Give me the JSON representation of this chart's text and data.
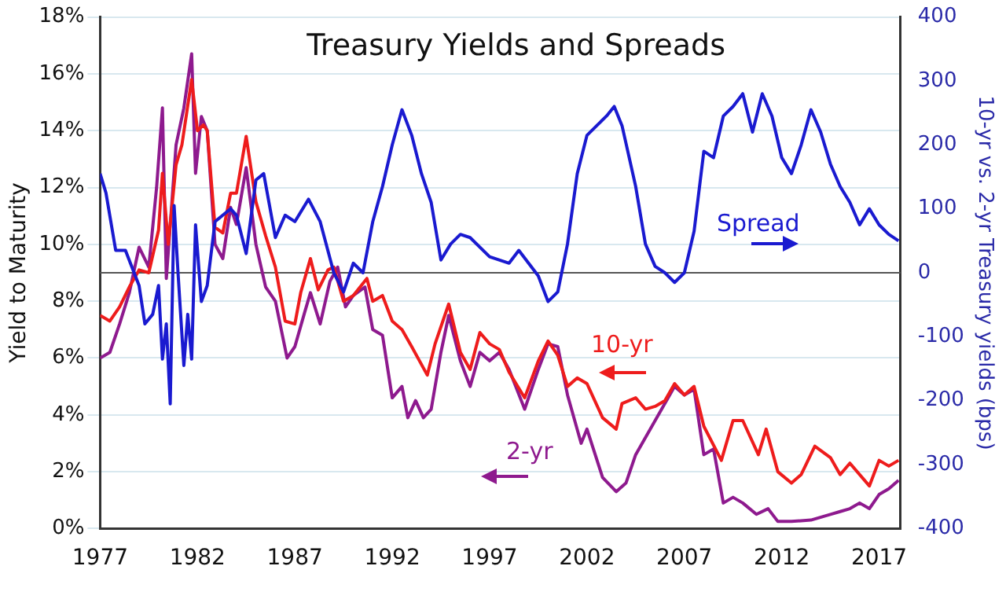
{
  "chart_data": {
    "type": "line",
    "title": "Treasury Yields and Spreads",
    "ylabel": "Yield to Maturity",
    "y2label": "10-yr vs. 2-yr Treasury yields (bps)",
    "xlim": [
      1977,
      2018.1
    ],
    "xticks": [
      1977,
      1982,
      1987,
      1992,
      1997,
      2002,
      2007,
      2012,
      2017
    ],
    "ylim": [
      0,
      18
    ],
    "yticks": [
      {
        "value": 0,
        "label": "0%"
      },
      {
        "value": 2,
        "label": "2%"
      },
      {
        "value": 4,
        "label": "4%"
      },
      {
        "value": 6,
        "label": "6%"
      },
      {
        "value": 8,
        "label": "8%"
      },
      {
        "value": 10,
        "label": "10%"
      },
      {
        "value": 12,
        "label": "12%"
      },
      {
        "value": 14,
        "label": "14%"
      },
      {
        "value": 16,
        "label": "16%"
      },
      {
        "value": 18,
        "label": "18%"
      }
    ],
    "y2lim": [
      -400,
      400
    ],
    "y2ticks": [
      -400,
      -300,
      -200,
      -100,
      0,
      100,
      200,
      300,
      400
    ],
    "grid": "y",
    "legend": false,
    "marker": "none",
    "ref_lines": [
      {
        "axis": "y2",
        "value": 0,
        "color": "#555555"
      }
    ],
    "series": [
      {
        "name": "Spread",
        "color": "#1a1ad0",
        "axis": "y2",
        "x": [
          1977,
          1977.3,
          1977.8,
          1978.3,
          1979,
          1979.3,
          1979.7,
          1980,
          1980.2,
          1980.4,
          1980.6,
          1980.8,
          1981,
          1981.3,
          1981.5,
          1981.7,
          1981.9,
          1982.2,
          1982.5,
          1982.9,
          1983.3,
          1983.7,
          1984,
          1984.5,
          1985,
          1985.4,
          1986,
          1986.5,
          1987,
          1987.7,
          1988.3,
          1989,
          1989.5,
          1990,
          1990.5,
          1991,
          1991.5,
          1992,
          1992.5,
          1993,
          1993.5,
          1994,
          1994.5,
          1995,
          1995.5,
          1996,
          1997,
          1998,
          1998.5,
          1999,
          1999.5,
          2000,
          2000.5,
          2001,
          2001.5,
          2002,
          2002.5,
          2003,
          2003.4,
          2003.8,
          2004.5,
          2005,
          2005.5,
          2006,
          2006.5,
          2007,
          2007.5,
          2008,
          2008.5,
          2009,
          2009.5,
          2010,
          2010.5,
          2011,
          2011.5,
          2012,
          2012.5,
          2013,
          2013.5,
          2014,
          2014.5,
          2015,
          2015.5,
          2016,
          2016.5,
          2017,
          2017.5,
          2018
        ],
        "values": [
          155,
          125,
          35,
          35,
          -20,
          -80,
          -65,
          -20,
          -135,
          -80,
          -205,
          105,
          0,
          -145,
          -65,
          -135,
          75,
          -45,
          -20,
          80,
          90,
          100,
          90,
          30,
          145,
          155,
          55,
          90,
          80,
          115,
          80,
          0,
          -30,
          15,
          0,
          80,
          135,
          200,
          255,
          215,
          155,
          110,
          20,
          45,
          60,
          55,
          25,
          15,
          35,
          15,
          -5,
          -45,
          -30,
          45,
          155,
          215,
          230,
          245,
          260,
          230,
          135,
          45,
          10,
          0,
          -15,
          0,
          65,
          190,
          180,
          245,
          260,
          280,
          220,
          280,
          245,
          180,
          155,
          200,
          255,
          220,
          170,
          135,
          110,
          75,
          100,
          75,
          60,
          50
        ]
      },
      {
        "name": "10-yr",
        "color": "#ee1c1c",
        "x": [
          1977,
          1977.5,
          1978,
          1978.5,
          1979,
          1979.5,
          1980,
          1980.2,
          1980.5,
          1980.9,
          1981.2,
          1981.7,
          1982,
          1982.3,
          1982.5,
          1982.9,
          1983.3,
          1983.7,
          1984,
          1984.5,
          1985,
          1985.5,
          1986,
          1986.5,
          1987,
          1987.3,
          1987.8,
          1988.2,
          1988.7,
          1989,
          1989.5,
          1990,
          1990.7,
          1991,
          1991.5,
          1992,
          1992.5,
          1993,
          1993.8,
          1994.2,
          1994.9,
          1995.5,
          1996,
          1996.5,
          1997,
          1997.5,
          1998,
          1998.8,
          1999.5,
          2000,
          2000.5,
          2001,
          2001.5,
          2002,
          2002.8,
          2003.5,
          2003.8,
          2004.5,
          2005,
          2005.5,
          2006,
          2006.5,
          2007,
          2007.5,
          2008,
          2008.9,
          2009.5,
          2010,
          2010.8,
          2011.2,
          2011.8,
          2012.5,
          2013,
          2013.7,
          2014.5,
          2015,
          2015.5,
          2016.5,
          2017,
          2017.5,
          2018
        ],
        "values": [
          7.5,
          7.3,
          7.8,
          8.5,
          9.1,
          9.0,
          10.5,
          12.5,
          10.0,
          12.8,
          13.5,
          15.8,
          14.0,
          14.2,
          14.0,
          10.6,
          10.4,
          11.8,
          11.8,
          13.8,
          11.5,
          10.3,
          9.2,
          7.3,
          7.2,
          8.3,
          9.5,
          8.4,
          9.1,
          9.2,
          8.0,
          8.2,
          8.8,
          8.0,
          8.2,
          7.3,
          7.0,
          6.4,
          5.4,
          6.5,
          7.9,
          6.2,
          5.6,
          6.9,
          6.5,
          6.3,
          5.5,
          4.6,
          5.9,
          6.6,
          6.1,
          5.0,
          5.3,
          5.1,
          3.9,
          3.5,
          4.4,
          4.6,
          4.2,
          4.3,
          4.5,
          5.1,
          4.7,
          5.0,
          3.6,
          2.4,
          3.8,
          3.8,
          2.6,
          3.5,
          2.0,
          1.6,
          1.9,
          2.9,
          2.5,
          1.9,
          2.3,
          1.5,
          2.4,
          2.2,
          2.4
        ]
      },
      {
        "name": "2-yr",
        "color": "#8e1a8e",
        "x": [
          1977,
          1977.5,
          1978,
          1978.5,
          1979,
          1979.5,
          1979.9,
          1980.2,
          1980.4,
          1980.9,
          1981.3,
          1981.7,
          1981.9,
          1982.2,
          1982.5,
          1982.9,
          1983.3,
          1983.7,
          1984,
          1984.5,
          1985,
          1985.5,
          1986,
          1986.6,
          1987,
          1987.5,
          1987.8,
          1988.3,
          1988.8,
          1989.2,
          1989.6,
          1990,
          1990.6,
          1991,
          1991.5,
          1992,
          1992.5,
          1992.8,
          1993.2,
          1993.6,
          1994,
          1994.5,
          1994.9,
          1995.5,
          1996,
          1996.5,
          1997,
          1997.5,
          1998,
          1998.8,
          1999.5,
          2000,
          2000.5,
          2001,
          2001.7,
          2002,
          2002.8,
          2003.5,
          2004,
          2004.5,
          2005,
          2005.5,
          2006,
          2006.5,
          2007,
          2007.5,
          2008,
          2008.5,
          2009,
          2009.5,
          2010,
          2010.7,
          2011.3,
          2011.8,
          2012.5,
          2013.5,
          2014.5,
          2015,
          2015.5,
          2016,
          2016.5,
          2017,
          2017.5,
          2018
        ],
        "values": [
          6.0,
          6.2,
          7.2,
          8.3,
          9.9,
          9.2,
          12.0,
          14.8,
          8.8,
          13.5,
          14.8,
          16.7,
          12.5,
          14.5,
          14.0,
          10.0,
          9.5,
          11.3,
          10.7,
          12.7,
          10.0,
          8.5,
          8.0,
          6.0,
          6.4,
          7.6,
          8.3,
          7.2,
          8.7,
          9.2,
          7.8,
          8.2,
          8.5,
          7.0,
          6.8,
          4.6,
          5.0,
          3.9,
          4.5,
          3.9,
          4.2,
          6.2,
          7.5,
          5.9,
          5.0,
          6.2,
          5.9,
          6.2,
          5.6,
          4.2,
          5.6,
          6.5,
          6.4,
          4.7,
          3.0,
          3.5,
          1.8,
          1.3,
          1.6,
          2.6,
          3.2,
          3.8,
          4.4,
          5.0,
          4.7,
          4.9,
          2.6,
          2.8,
          0.9,
          1.1,
          0.9,
          0.5,
          0.7,
          0.25,
          0.25,
          0.3,
          0.5,
          0.6,
          0.7,
          0.9,
          0.7,
          1.2,
          1.4,
          1.7
        ]
      }
    ]
  }
}
